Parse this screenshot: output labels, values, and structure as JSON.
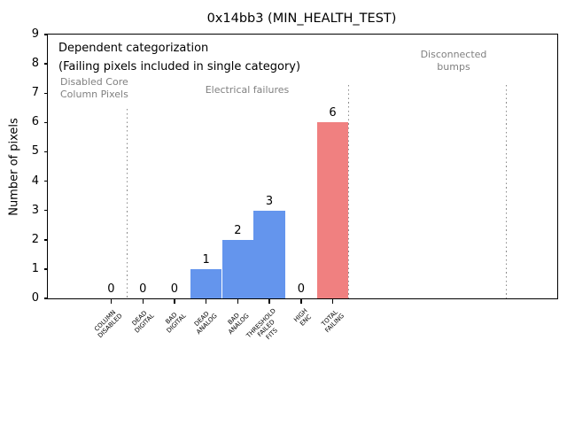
{
  "chart_data": {
    "type": "bar",
    "title": "0x14bb3 (MIN_HEALTH_TEST)",
    "ylabel": "Number of pixels",
    "xlabel": "",
    "ylim": [
      0,
      9
    ],
    "yticks": [
      "0",
      "1",
      "2",
      "3",
      "4",
      "5",
      "6",
      "7",
      "8",
      "9"
    ],
    "grid": "off",
    "legend": "none",
    "categories": [
      "COLUMN\nDISABLED",
      "DEAD\nDIGITAL",
      "BAD\nDIGITAL",
      "DEAD\nANALOG",
      "BAD\nANALOG",
      "THRESHOLD\nFAILED\nFITS",
      "HIGH\nENC",
      "TOTAL\nFAILING"
    ],
    "values": [
      0,
      0,
      0,
      1,
      2,
      3,
      0,
      6
    ],
    "bar_colors": [
      "#6495ed",
      "#6495ed",
      "#6495ed",
      "#6495ed",
      "#6495ed",
      "#6495ed",
      "#6495ed",
      "#f08080"
    ],
    "annotations": {
      "primary": "Dependent categorization",
      "secondary": "(Failing pixels included in single category)",
      "regions": [
        {
          "label": "Disabled Core\nColumn Pixels"
        },
        {
          "label": "Electrical failures"
        },
        {
          "label": "Disconnected\nbumps"
        }
      ]
    },
    "colors": {
      "bar_blue": "#6495ed",
      "bar_red": "#f08080",
      "annotation_gray": "#808080",
      "axis": "#000000",
      "background": "#ffffff"
    }
  }
}
